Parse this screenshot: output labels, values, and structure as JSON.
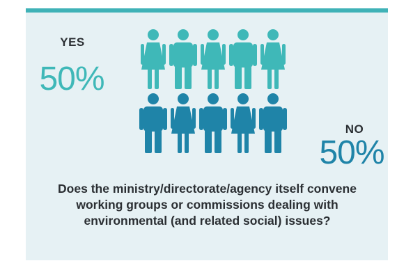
{
  "chart_data": {
    "type": "pictograph",
    "series": [
      {
        "name": "YES",
        "value": 50,
        "display": "50%",
        "color": "#3fb8b8",
        "icons": [
          "female",
          "male",
          "female",
          "male",
          "female"
        ]
      },
      {
        "name": "NO",
        "value": 50,
        "display": "50%",
        "color": "#1f84a8",
        "icons": [
          "male",
          "female",
          "male",
          "female",
          "male"
        ]
      }
    ],
    "question": "Does the ministry/directorate/agency itself convene working groups or commissions dealing with environmental (and related social) issues?"
  },
  "colors": {
    "accent_bar": "#3fb2b7",
    "background": "#e6f1f4",
    "text": "#2b2f33"
  }
}
